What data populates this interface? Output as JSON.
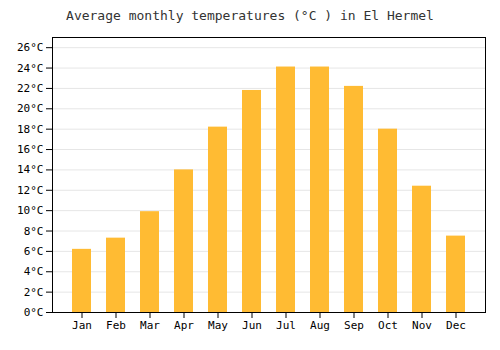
{
  "chart_data": {
    "type": "bar",
    "title": "Average monthly temperatures (°C ) in El Hermel",
    "categories": [
      "Jan",
      "Feb",
      "Mar",
      "Apr",
      "May",
      "Jun",
      "Jul",
      "Aug",
      "Sep",
      "Oct",
      "Nov",
      "Dec"
    ],
    "values": [
      6.2,
      7.3,
      9.9,
      14.0,
      18.2,
      21.8,
      24.1,
      24.1,
      22.2,
      18.0,
      12.4,
      7.5
    ],
    "color": "#FFBB33",
    "ylim": [
      0,
      27
    ],
    "yticks": [
      {
        "value": 0,
        "label": "0°C"
      },
      {
        "value": 2,
        "label": "2°C"
      },
      {
        "value": 4,
        "label": "4°C"
      },
      {
        "value": 6,
        "label": "6°C"
      },
      {
        "value": 8,
        "label": "8°C"
      },
      {
        "value": 10,
        "label": "10°C"
      },
      {
        "value": 12,
        "label": "12°C"
      },
      {
        "value": 14,
        "label": "14°C"
      },
      {
        "value": 16,
        "label": "16°C"
      },
      {
        "value": 18,
        "label": "18°C"
      },
      {
        "value": 20,
        "label": "20°C"
      },
      {
        "value": 22,
        "label": "22°C"
      },
      {
        "value": 24,
        "label": "24°C"
      },
      {
        "value": 26,
        "label": "26°C"
      }
    ],
    "grid": true
  }
}
